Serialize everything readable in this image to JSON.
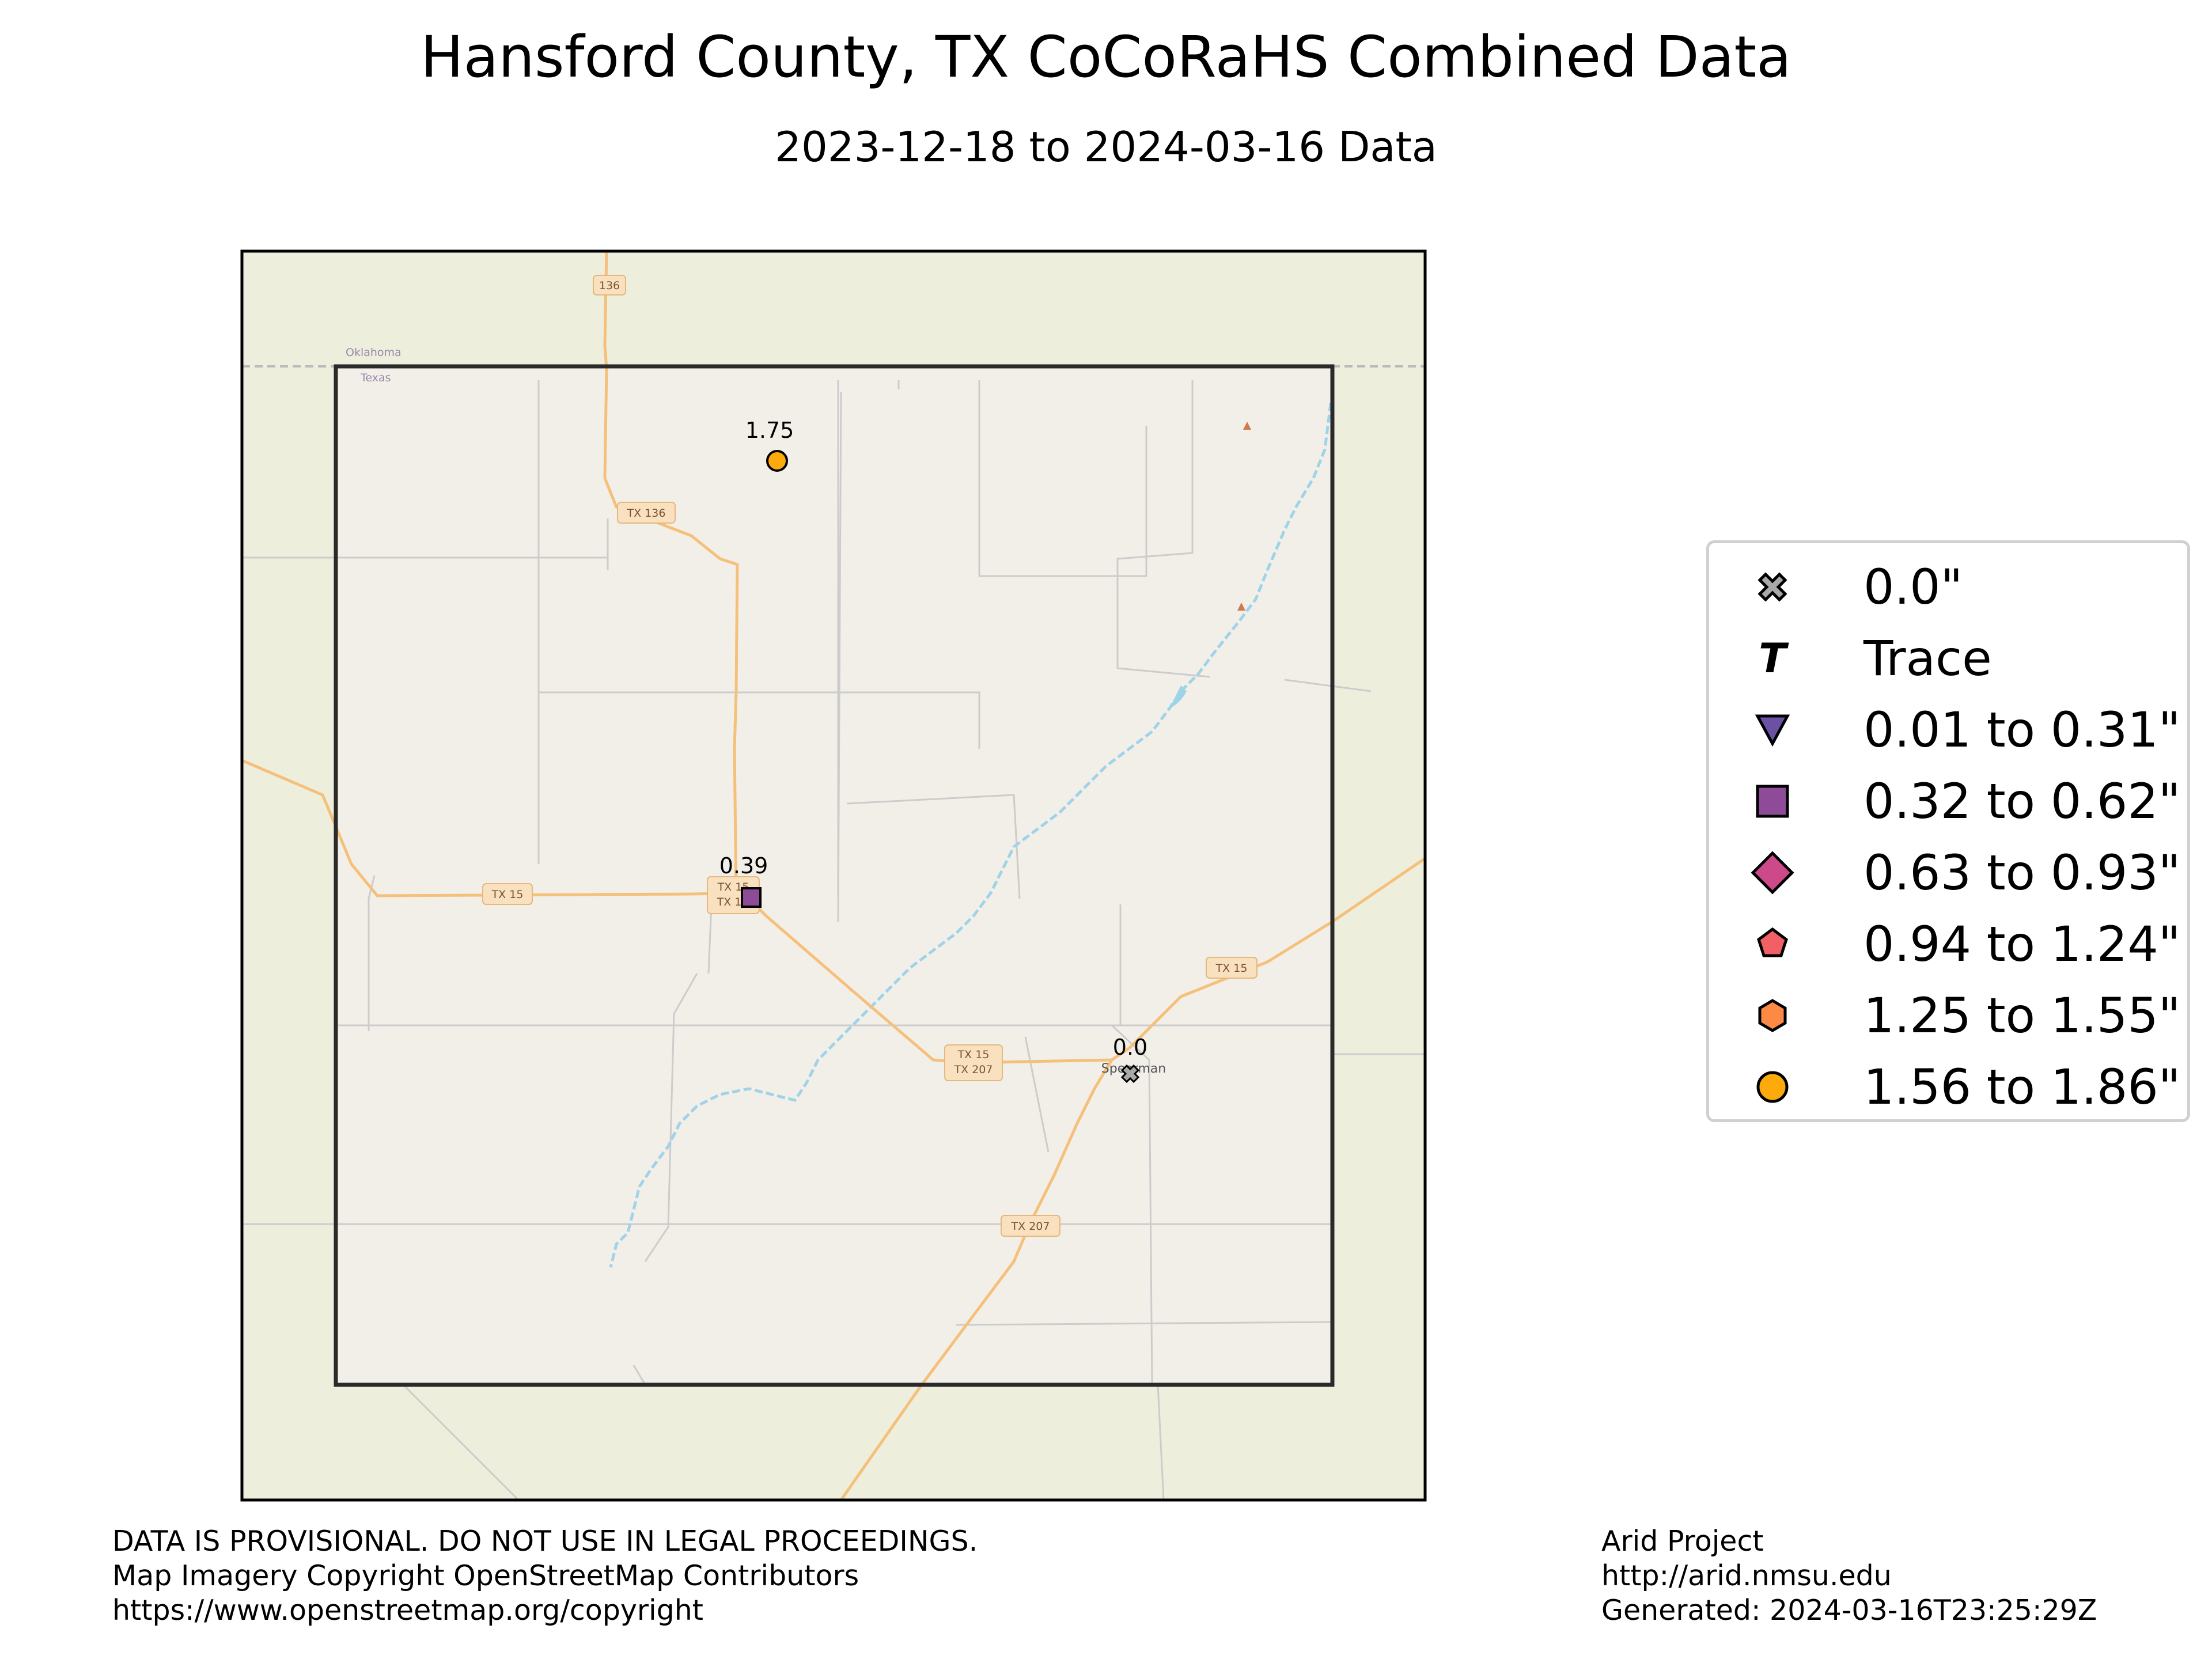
{
  "title": "Hansford County, TX CoCoRaHS Combined Data",
  "subtitle": "2023-12-18 to 2024-03-16 Data",
  "map_labels": {
    "state_north": "Oklahoma",
    "state_south": "Texas",
    "town": "Spearman",
    "road_shields": [
      "136",
      "TX 136",
      "TX 15",
      "TX 15",
      "TX 1",
      "TX 15",
      "TX 15",
      "TX 207",
      "TX 207"
    ]
  },
  "stations": [
    {
      "value": "1.75",
      "category": "1.56 to 1.86\"",
      "symbol": "circle"
    },
    {
      "value": "0.39",
      "category": "0.32 to 0.62\"",
      "symbol": "square"
    },
    {
      "value": "0.0",
      "category": "0.0\"",
      "symbol": "x"
    }
  ],
  "legend": [
    {
      "label": "0.0\"",
      "symbol": "x",
      "color": "#a9a9a9"
    },
    {
      "label": "Trace",
      "symbol": "T",
      "color": "#000000"
    },
    {
      "label": "0.01 to 0.31\"",
      "symbol": "triangle-down",
      "color": "#6a51a3"
    },
    {
      "label": "0.32 to 0.62\"",
      "symbol": "square",
      "color": "#8e4b98"
    },
    {
      "label": "0.63 to 0.93\"",
      "symbol": "diamond",
      "color": "#cd4a8a"
    },
    {
      "label": "0.94 to 1.24\"",
      "symbol": "pentagon",
      "color": "#f15f67"
    },
    {
      "label": "1.25 to 1.55\"",
      "symbol": "hexagon",
      "color": "#fc8a45"
    },
    {
      "label": "1.56 to 1.86\"",
      "symbol": "circle",
      "color": "#fcaa0c"
    }
  ],
  "footer_left": [
    "DATA IS PROVISIONAL. DO NOT USE IN LEGAL PROCEEDINGS.",
    "Map Imagery Copyright OpenStreetMap Contributors",
    "https://www.openstreetmap.org/copyright"
  ],
  "footer_right": [
    "Arid Project",
    "http://arid.nmsu.edu",
    "Generated: 2024-03-16T23:25:29Z"
  ],
  "colors": {
    "map_background": "#eeeedd",
    "county_fill": "#f2efe9",
    "highway": "#f5c07a",
    "minor_road": "#cccccc",
    "river": "#9fd3e8"
  }
}
